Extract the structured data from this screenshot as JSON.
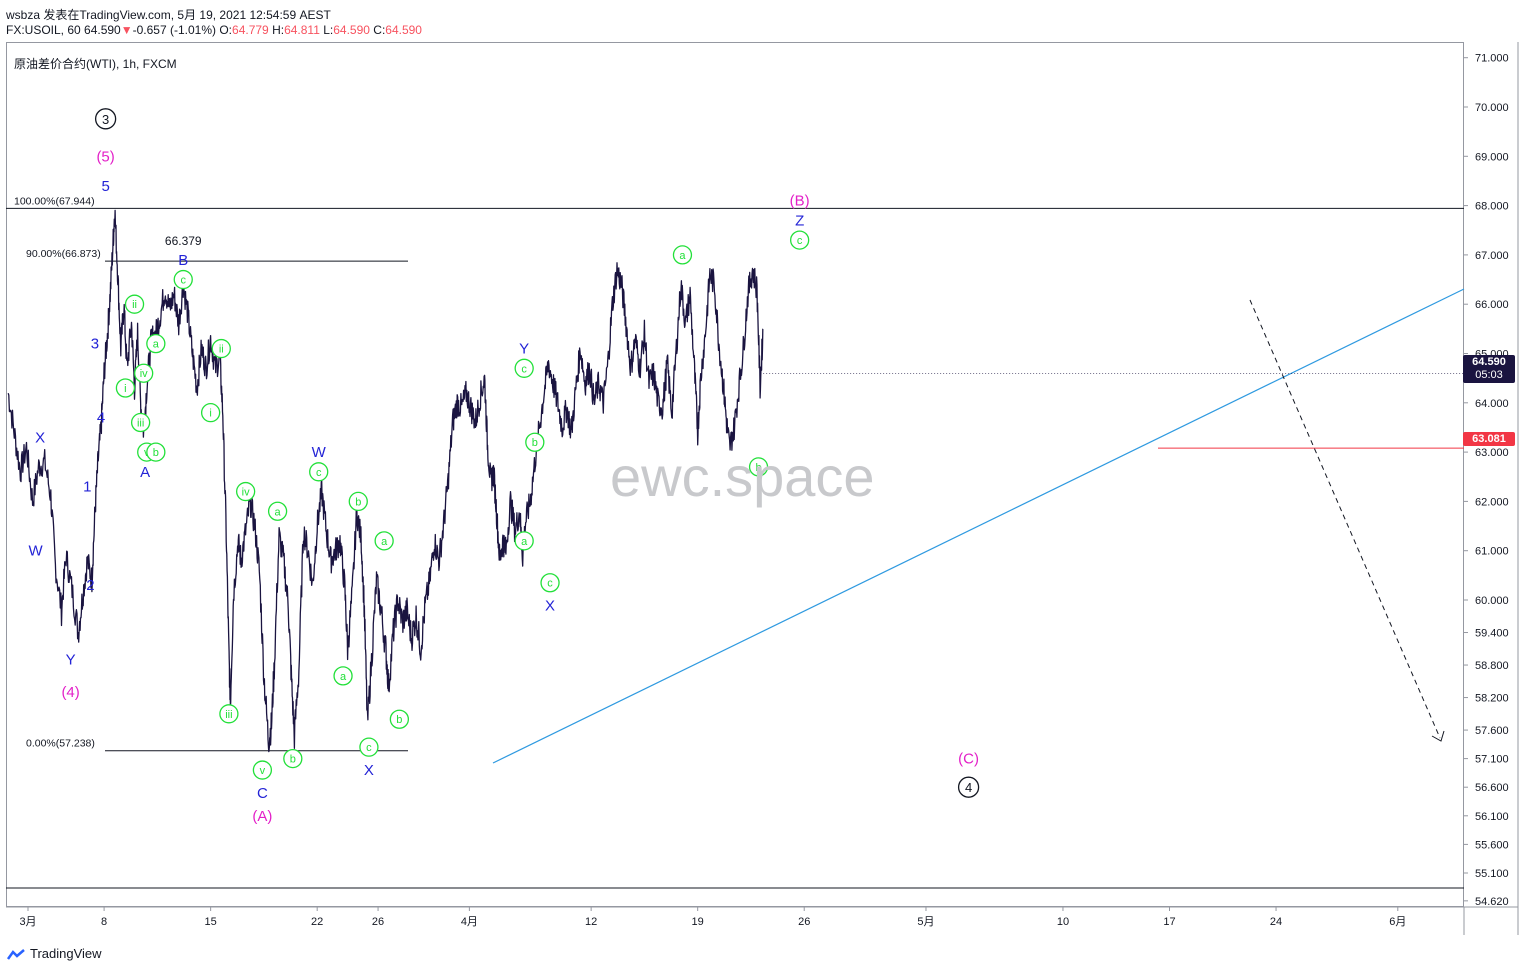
{
  "header": {
    "line1": "wsbza 发表在TradingView.com, 5月 19, 2021 12:54:59 AEST",
    "symbol_prefix": "FX:USOIL, 60 64.590",
    "change_arrow": "▼",
    "change": "-0.657 (-1.01%)",
    "o_label": "O:",
    "o_val": "64.779",
    "h_label": "H:",
    "h_val": "64.811",
    "l_label": "L:",
    "l_val": "64.590",
    "c_label": "C:",
    "c_val": "64.590"
  },
  "symbol_label": "原油差价合约(WTI), 1h, FXCM",
  "watermark": "ewc.space",
  "footer": {
    "logo_text": "TradingView"
  },
  "price_badges": {
    "last_price": "64.590",
    "countdown": "05:03",
    "level": "63.081"
  },
  "colors": {
    "candles": "#1a1440",
    "trendline": "#2f9ae0",
    "fib": "#131722",
    "level_line": "#f23645",
    "green": "#22e039",
    "blue": "#2323d6",
    "magenta": "#e320c8",
    "down": "#f7525f"
  },
  "chart_data": {
    "type": "line",
    "title": "",
    "xlabel": "",
    "ylabel": "",
    "ylim": [
      54.3,
      71.3
    ],
    "y_ticks": [
      "71.000",
      "70.000",
      "69.000",
      "68.000",
      "67.000",
      "66.000",
      "65.000",
      "64.000",
      "63.000",
      "62.000",
      "61.000",
      "60.000",
      "59.400",
      "58.800",
      "58.200",
      "57.600",
      "57.100",
      "56.600",
      "56.100",
      "55.600",
      "55.100",
      "54.620"
    ],
    "x_ticks": [
      {
        "label": "3月",
        "d": 0
      },
      {
        "label": "8",
        "d": 5
      },
      {
        "label": "15",
        "d": 12
      },
      {
        "label": "22",
        "d": 19
      },
      {
        "label": "26",
        "d": 23
      },
      {
        "label": "4月",
        "d": 29
      },
      {
        "label": "12",
        "d": 37
      },
      {
        "label": "19",
        "d": 44
      },
      {
        "label": "26",
        "d": 51
      },
      {
        "label": "5月",
        "d": 59
      },
      {
        "label": "10",
        "d": 68
      },
      {
        "label": "17",
        "d": 75
      },
      {
        "label": "24",
        "d": 82
      },
      {
        "label": "6月",
        "d": 90
      }
    ],
    "series": [
      {
        "points": [
          [
            -1.3,
            64.2
          ],
          [
            -0.9,
            63.4
          ],
          [
            -0.5,
            62.6
          ],
          [
            -0.1,
            63.1
          ],
          [
            0.3,
            62.0
          ],
          [
            0.7,
            62.7
          ],
          [
            1.1,
            62.8
          ],
          [
            1.5,
            62.1
          ],
          [
            1.8,
            60.7
          ],
          [
            2.2,
            59.8
          ],
          [
            2.5,
            60.9
          ],
          [
            2.9,
            60.2
          ],
          [
            3.3,
            59.4
          ],
          [
            3.6,
            60.1
          ],
          [
            3.9,
            60.8
          ],
          [
            4.2,
            60.4
          ],
          [
            4.4,
            61.8
          ],
          [
            4.6,
            62.8
          ],
          [
            4.8,
            63.5
          ],
          [
            5.0,
            64.6
          ],
          [
            5.2,
            65.3
          ],
          [
            5.4,
            66.2
          ],
          [
            5.6,
            67.3
          ],
          [
            5.7,
            67.9
          ],
          [
            5.9,
            66.6
          ],
          [
            6.1,
            65.1
          ],
          [
            6.3,
            66.0
          ],
          [
            6.5,
            64.7
          ],
          [
            6.8,
            65.6
          ],
          [
            7.0,
            64.3
          ],
          [
            7.2,
            65.4
          ],
          [
            7.4,
            64.0
          ],
          [
            7.6,
            63.4
          ],
          [
            7.8,
            64.3
          ],
          [
            8.1,
            65.3
          ],
          [
            8.4,
            65.4
          ],
          [
            8.7,
            65.8
          ],
          [
            9.0,
            66.3
          ],
          [
            9.3,
            65.9
          ],
          [
            9.6,
            66.2
          ],
          [
            9.9,
            65.6
          ],
          [
            10.2,
            66.4
          ],
          [
            10.5,
            65.8
          ],
          [
            10.8,
            65.0
          ],
          [
            11.1,
            64.3
          ],
          [
            11.4,
            65.1
          ],
          [
            11.7,
            64.7
          ],
          [
            12.0,
            65.3
          ],
          [
            12.3,
            64.7
          ],
          [
            12.6,
            64.9
          ],
          [
            12.8,
            63.8
          ],
          [
            13.0,
            61.6
          ],
          [
            13.2,
            59.0
          ],
          [
            13.3,
            58.1
          ],
          [
            13.5,
            60.1
          ],
          [
            13.8,
            61.2
          ],
          [
            14.0,
            60.8
          ],
          [
            14.3,
            61.4
          ],
          [
            14.6,
            62.0
          ],
          [
            14.9,
            61.5
          ],
          [
            15.2,
            60.6
          ],
          [
            15.5,
            58.6
          ],
          [
            15.8,
            57.4
          ],
          [
            16.0,
            57.7
          ],
          [
            16.2,
            58.9
          ],
          [
            16.5,
            61.3
          ],
          [
            16.8,
            60.8
          ],
          [
            17.1,
            59.9
          ],
          [
            17.3,
            58.6
          ],
          [
            17.5,
            57.5
          ],
          [
            17.8,
            58.7
          ],
          [
            18.1,
            61.4
          ],
          [
            18.4,
            61.0
          ],
          [
            18.7,
            60.3
          ],
          [
            19.0,
            61.5
          ],
          [
            19.3,
            62.2
          ],
          [
            19.6,
            61.4
          ],
          [
            19.9,
            60.8
          ],
          [
            20.2,
            61.0
          ],
          [
            20.5,
            61.2
          ],
          [
            20.8,
            60.3
          ],
          [
            21.0,
            59.1
          ],
          [
            21.3,
            60.1
          ],
          [
            21.6,
            61.8
          ],
          [
            21.9,
            61.2
          ],
          [
            22.1,
            59.8
          ],
          [
            22.3,
            57.7
          ],
          [
            22.6,
            59.0
          ],
          [
            22.9,
            60.4
          ],
          [
            23.2,
            59.8
          ],
          [
            23.5,
            59.1
          ],
          [
            23.7,
            58.4
          ],
          [
            24.0,
            59.4
          ],
          [
            24.3,
            60.0
          ],
          [
            24.6,
            59.6
          ],
          [
            24.9,
            59.8
          ],
          [
            25.2,
            59.3
          ],
          [
            25.5,
            59.7
          ],
          [
            25.8,
            59.1
          ],
          [
            26.1,
            59.9
          ],
          [
            26.4,
            60.4
          ],
          [
            26.7,
            61.2
          ],
          [
            27.0,
            60.8
          ],
          [
            27.3,
            61.5
          ],
          [
            27.6,
            62.4
          ],
          [
            27.9,
            63.6
          ],
          [
            28.2,
            64.0
          ],
          [
            28.5,
            63.9
          ],
          [
            28.8,
            64.2
          ],
          [
            29.1,
            63.9
          ],
          [
            29.4,
            63.6
          ],
          [
            29.7,
            64.1
          ],
          [
            30.0,
            64.5
          ],
          [
            30.2,
            63.1
          ],
          [
            30.4,
            62.4
          ],
          [
            30.6,
            62.6
          ],
          [
            30.8,
            61.7
          ],
          [
            31.0,
            60.8
          ],
          [
            31.2,
            61.2
          ],
          [
            31.4,
            61.0
          ],
          [
            31.7,
            62.0
          ],
          [
            32.0,
            61.4
          ],
          [
            32.3,
            61.8
          ],
          [
            32.5,
            60.9
          ],
          [
            32.7,
            61.6
          ],
          [
            33.0,
            62.0
          ],
          [
            33.3,
            62.8
          ],
          [
            33.6,
            63.5
          ],
          [
            33.9,
            64.2
          ],
          [
            34.2,
            64.8
          ],
          [
            34.5,
            64.4
          ],
          [
            34.8,
            64.0
          ],
          [
            35.1,
            63.5
          ],
          [
            35.4,
            63.9
          ],
          [
            35.7,
            63.4
          ],
          [
            36.0,
            64.3
          ],
          [
            36.3,
            65.1
          ],
          [
            36.6,
            64.4
          ],
          [
            36.9,
            64.7
          ],
          [
            37.2,
            64.0
          ],
          [
            37.5,
            64.4
          ],
          [
            37.8,
            64.0
          ],
          [
            38.1,
            64.8
          ],
          [
            38.4,
            66.0
          ],
          [
            38.7,
            66.7
          ],
          [
            39.0,
            66.4
          ],
          [
            39.3,
            65.6
          ],
          [
            39.6,
            64.7
          ],
          [
            39.9,
            65.3
          ],
          [
            40.2,
            64.7
          ],
          [
            40.5,
            65.4
          ],
          [
            40.8,
            64.4
          ],
          [
            41.1,
            64.6
          ],
          [
            41.4,
            64.0
          ],
          [
            41.7,
            63.9
          ],
          [
            42.0,
            64.8
          ],
          [
            42.3,
            63.8
          ],
          [
            42.6,
            65.1
          ],
          [
            42.9,
            66.4
          ],
          [
            43.2,
            65.6
          ],
          [
            43.5,
            66.2
          ],
          [
            43.8,
            64.6
          ],
          [
            44.0,
            63.4
          ],
          [
            44.2,
            64.5
          ],
          [
            44.5,
            65.4
          ],
          [
            44.8,
            66.6
          ],
          [
            45.1,
            66.4
          ],
          [
            45.4,
            65.2
          ],
          [
            45.7,
            64.3
          ],
          [
            45.9,
            63.6
          ],
          [
            46.1,
            63.1
          ],
          [
            46.4,
            63.5
          ],
          [
            46.7,
            64.3
          ],
          [
            47.0,
            65.1
          ],
          [
            47.3,
            66.2
          ],
          [
            47.6,
            66.7
          ],
          [
            47.9,
            66.3
          ],
          [
            48.1,
            64.3
          ],
          [
            48.3,
            65.5
          ]
        ]
      }
    ]
  },
  "labels": [
    {
      "t": "3",
      "c": "circle",
      "d": 5.1,
      "y": 69.76
    },
    {
      "t": "(5)",
      "c": "magenta",
      "d": 5.1,
      "y": 69.0
    },
    {
      "t": "5",
      "c": "blue",
      "d": 5.1,
      "y": 68.4
    },
    {
      "t": "66.379",
      "c": "black",
      "d": 10.2,
      "y": 67.3
    },
    {
      "t": "B",
      "c": "blue",
      "d": 10.2,
      "y": 66.9
    },
    {
      "t": "c",
      "c": "green",
      "d": 10.2,
      "y": 66.5
    },
    {
      "t": "ii",
      "c": "green",
      "d": 7.0,
      "y": 66.0
    },
    {
      "t": "a",
      "c": "green",
      "d": 8.4,
      "y": 65.2
    },
    {
      "t": "3",
      "c": "blue",
      "d": 4.4,
      "y": 65.2
    },
    {
      "t": "iv",
      "c": "green",
      "d": 7.6,
      "y": 64.6
    },
    {
      "t": "i",
      "c": "green",
      "d": 6.4,
      "y": 64.3
    },
    {
      "t": "4",
      "c": "blue",
      "d": 4.8,
      "y": 63.7
    },
    {
      "t": "iii",
      "c": "green",
      "d": 7.4,
      "y": 63.6
    },
    {
      "t": "v",
      "c": "green",
      "d": 7.8,
      "y": 63.0
    },
    {
      "t": "b",
      "c": "green",
      "d": 8.4,
      "y": 63.0
    },
    {
      "t": "A",
      "c": "blue",
      "d": 7.7,
      "y": 62.6
    },
    {
      "t": "X",
      "c": "blue",
      "d": 0.8,
      "y": 63.3
    },
    {
      "t": "1",
      "c": "blue",
      "d": 3.9,
      "y": 62.3
    },
    {
      "t": "W",
      "c": "blue",
      "d": 0.5,
      "y": 61.0
    },
    {
      "t": "2",
      "c": "blue",
      "d": 4.1,
      "y": 60.3
    },
    {
      "t": "Y",
      "c": "blue",
      "d": 2.8,
      "y": 58.9
    },
    {
      "t": "(4)",
      "c": "magenta",
      "d": 2.8,
      "y": 58.3
    },
    {
      "t": "ii",
      "c": "green",
      "d": 12.7,
      "y": 65.1
    },
    {
      "t": "i",
      "c": "green",
      "d": 12.0,
      "y": 63.8
    },
    {
      "t": "iv",
      "c": "green",
      "d": 14.3,
      "y": 62.2
    },
    {
      "t": "iii",
      "c": "green",
      "d": 13.2,
      "y": 57.9
    },
    {
      "t": "v",
      "c": "green",
      "d": 15.4,
      "y": 56.9
    },
    {
      "t": "C",
      "c": "blue",
      "d": 15.4,
      "y": 56.5
    },
    {
      "t": "(A)",
      "c": "magenta",
      "d": 15.4,
      "y": 56.1
    },
    {
      "t": "a",
      "c": "green",
      "d": 16.4,
      "y": 61.8
    },
    {
      "t": "b",
      "c": "green",
      "d": 17.4,
      "y": 57.1
    },
    {
      "t": "W",
      "c": "blue",
      "d": 19.1,
      "y": 63.0
    },
    {
      "t": "c",
      "c": "green",
      "d": 19.1,
      "y": 62.6
    },
    {
      "t": "b",
      "c": "green",
      "d": 21.7,
      "y": 62.0
    },
    {
      "t": "a",
      "c": "green",
      "d": 23.4,
      "y": 61.2
    },
    {
      "t": "a",
      "c": "green",
      "d": 20.7,
      "y": 58.6
    },
    {
      "t": "b",
      "c": "green",
      "d": 24.4,
      "y": 57.8
    },
    {
      "t": "c",
      "c": "green",
      "d": 22.4,
      "y": 57.3
    },
    {
      "t": "X",
      "c": "blue",
      "d": 22.4,
      "y": 56.9
    },
    {
      "t": "Y",
      "c": "blue",
      "d": 32.6,
      "y": 65.1
    },
    {
      "t": "c",
      "c": "green",
      "d": 32.6,
      "y": 64.7
    },
    {
      "t": "b",
      "c": "green",
      "d": 33.3,
      "y": 63.2
    },
    {
      "t": "a",
      "c": "green",
      "d": 32.6,
      "y": 61.2
    },
    {
      "t": "c",
      "c": "green",
      "d": 34.3,
      "y": 60.35
    },
    {
      "t": "X",
      "c": "blue",
      "d": 34.3,
      "y": 59.9
    },
    {
      "t": "a",
      "c": "green",
      "d": 43.0,
      "y": 67.0
    },
    {
      "t": "(B)",
      "c": "magenta",
      "d": 50.7,
      "y": 68.1
    },
    {
      "t": "Z",
      "c": "blue",
      "d": 50.7,
      "y": 67.7
    },
    {
      "t": "c",
      "c": "green",
      "d": 50.7,
      "y": 67.3
    },
    {
      "t": "b",
      "c": "green",
      "d": 48.0,
      "y": 62.7
    },
    {
      "t": "(C)",
      "c": "magenta",
      "d": 61.8,
      "y": 57.1
    },
    {
      "t": "4",
      "c": "circle",
      "d": 61.8,
      "y": 56.6
    }
  ],
  "fib_levels": [
    {
      "label": "100.00%(67.944)",
      "price": 67.944
    },
    {
      "label": "90.00%(66.873)",
      "price": 66.873
    },
    {
      "label": "0.00%(57.238)",
      "price": 57.238
    }
  ]
}
